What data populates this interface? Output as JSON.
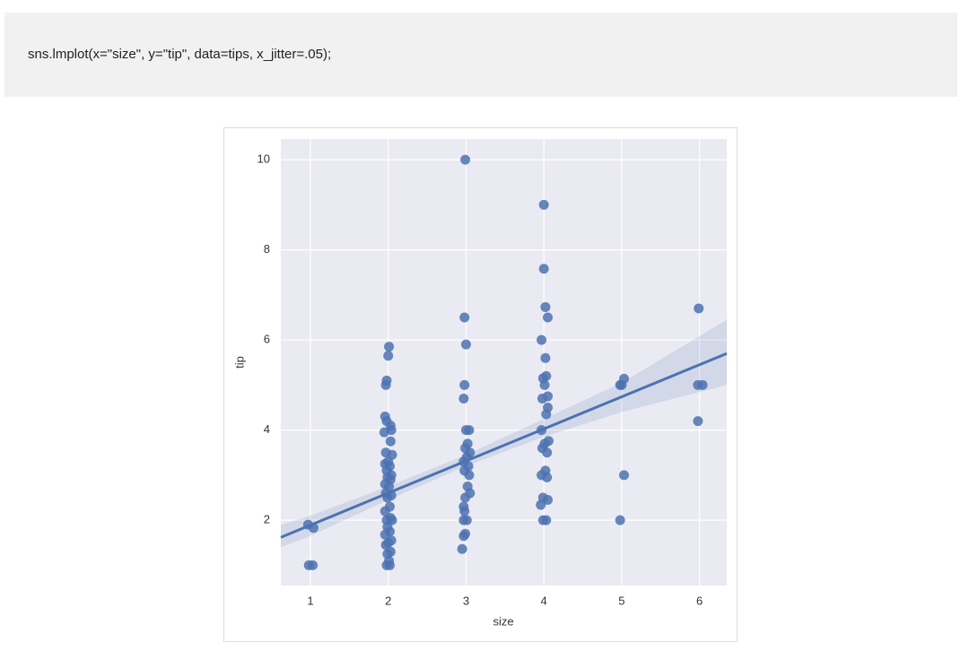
{
  "code": "sns.lmplot(x=\"size\", y=\"tip\", data=tips, x_jitter=.05);",
  "chart_data": {
    "type": "scatter",
    "x_label": "size",
    "y_label": "tip",
    "xlim": [
      0.62,
      6.35
    ],
    "ylim": [
      0.55,
      10.46
    ],
    "xticks": [
      1,
      2,
      3,
      4,
      5,
      6
    ],
    "yticks": [
      2,
      4,
      6,
      8,
      10
    ],
    "grid": true,
    "series": [
      {
        "color": "#4c72b0",
        "x": [
          0.98,
          1.03,
          0.97,
          1.04,
          2.01,
          2.0,
          1.98,
          1.97,
          1.96,
          1.98,
          2.03,
          2.04,
          1.95,
          2.03,
          1.97,
          2.05,
          2.0,
          1.96,
          2.02,
          1.98,
          2.04,
          1.99,
          2.03,
          1.96,
          2.01,
          1.97,
          2.04,
          1.99,
          2.02,
          1.96,
          2.03,
          1.98,
          2.05,
          1.99,
          2.02,
          1.96,
          2.04,
          2.0,
          1.97,
          2.03,
          1.99,
          2.01,
          1.98,
          2.02,
          2.99,
          2.98,
          3.0,
          2.98,
          2.97,
          3.0,
          3.04,
          3.02,
          2.99,
          3.05,
          3.01,
          2.97,
          3.03,
          2.98,
          3.04,
          3.02,
          3.05,
          2.99,
          2.97,
          2.98,
          2.97,
          3.01,
          2.99,
          2.97,
          2.95,
          4.0,
          4.0,
          4.02,
          4.05,
          3.97,
          4.02,
          4.03,
          3.99,
          4.01,
          4.05,
          3.98,
          4.05,
          4.03,
          3.97,
          4.06,
          4.01,
          3.98,
          4.04,
          4.02,
          3.97,
          4.04,
          3.99,
          4.05,
          3.96,
          3.99,
          4.03,
          4.98,
          5.03,
          5.0,
          5.03,
          4.98,
          5.99,
          5.98,
          6.04,
          5.98
        ],
        "values": [
          1,
          1,
          1.9,
          1.83,
          5.85,
          5.65,
          5.1,
          5.0,
          4.3,
          4.2,
          4.1,
          4.0,
          3.95,
          3.75,
          3.5,
          3.45,
          3.3,
          3.25,
          3.2,
          3.1,
          3.0,
          2.95,
          2.9,
          2.8,
          2.75,
          2.6,
          2.55,
          2.5,
          2.3,
          2.2,
          2.05,
          2.0,
          2.0,
          1.85,
          1.75,
          1.68,
          1.55,
          1.5,
          1.45,
          1.3,
          1.25,
          1.1,
          1.0,
          1.0,
          10,
          6.5,
          5.9,
          5.0,
          4.7,
          4.0,
          4.0,
          3.7,
          3.6,
          3.5,
          3.4,
          3.3,
          3.2,
          3.1,
          3.0,
          2.75,
          2.6,
          2.5,
          2.3,
          2.2,
          2.0,
          2.0,
          1.7,
          1.65,
          1.36,
          9.0,
          7.58,
          6.73,
          6.5,
          6.0,
          5.6,
          5.2,
          5.15,
          5.0,
          4.75,
          4.7,
          4.5,
          4.35,
          4.0,
          3.76,
          3.7,
          3.6,
          3.5,
          3.1,
          3.0,
          2.95,
          2.5,
          2.45,
          2.34,
          2.0,
          2.0,
          5.0,
          5.14,
          5.0,
          3.0,
          2.0,
          6.7,
          5.0,
          5.0,
          4.2
        ]
      }
    ],
    "regression": {
      "x": [
        0.62,
        6.35
      ],
      "values": [
        1.62,
        5.7
      ]
    },
    "ci": {
      "x": [
        0.62,
        1,
        2,
        3,
        4,
        5,
        6.35
      ],
      "upper": [
        1.9,
        2.1,
        2.75,
        3.45,
        4.25,
        5.05,
        6.45
      ],
      "lower": [
        1.4,
        1.65,
        2.45,
        3.2,
        3.85,
        4.4,
        5.0
      ]
    }
  }
}
